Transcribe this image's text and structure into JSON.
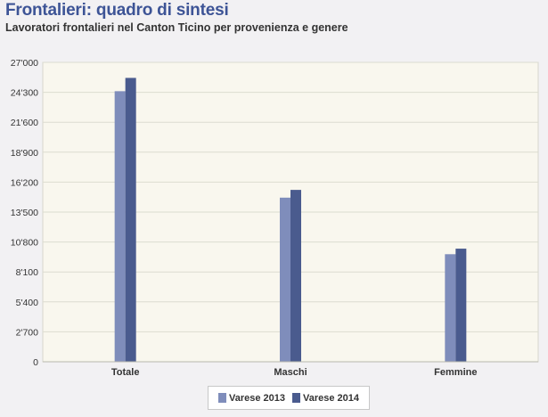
{
  "header": {
    "title": "Frontalieri: quadro di sintesi",
    "subtitle": "Lavoratori frontalieri nel Canton Ticino per provenienza e genere"
  },
  "colors": {
    "series_2013": "#7f8dbb",
    "series_2014": "#4a5b8e",
    "plot_background": "#f9f7ee",
    "grid": "#dcdcd0"
  },
  "chart_data": {
    "type": "bar",
    "categories": [
      "Totale",
      "Maschi",
      "Femmine"
    ],
    "series": [
      {
        "name": "Varese 2013",
        "values": [
          24400,
          14800,
          9700
        ]
      },
      {
        "name": "Varese 2014",
        "values": [
          25600,
          15500,
          10200
        ]
      }
    ],
    "y_ticks": [
      "0",
      "2'700",
      "5'400",
      "8'100",
      "10'800",
      "13'500",
      "16'200",
      "18'900",
      "21'600",
      "24'300",
      "27'000"
    ],
    "ylim": [
      0,
      27000
    ],
    "grid": true,
    "legend_position": "bottom"
  }
}
